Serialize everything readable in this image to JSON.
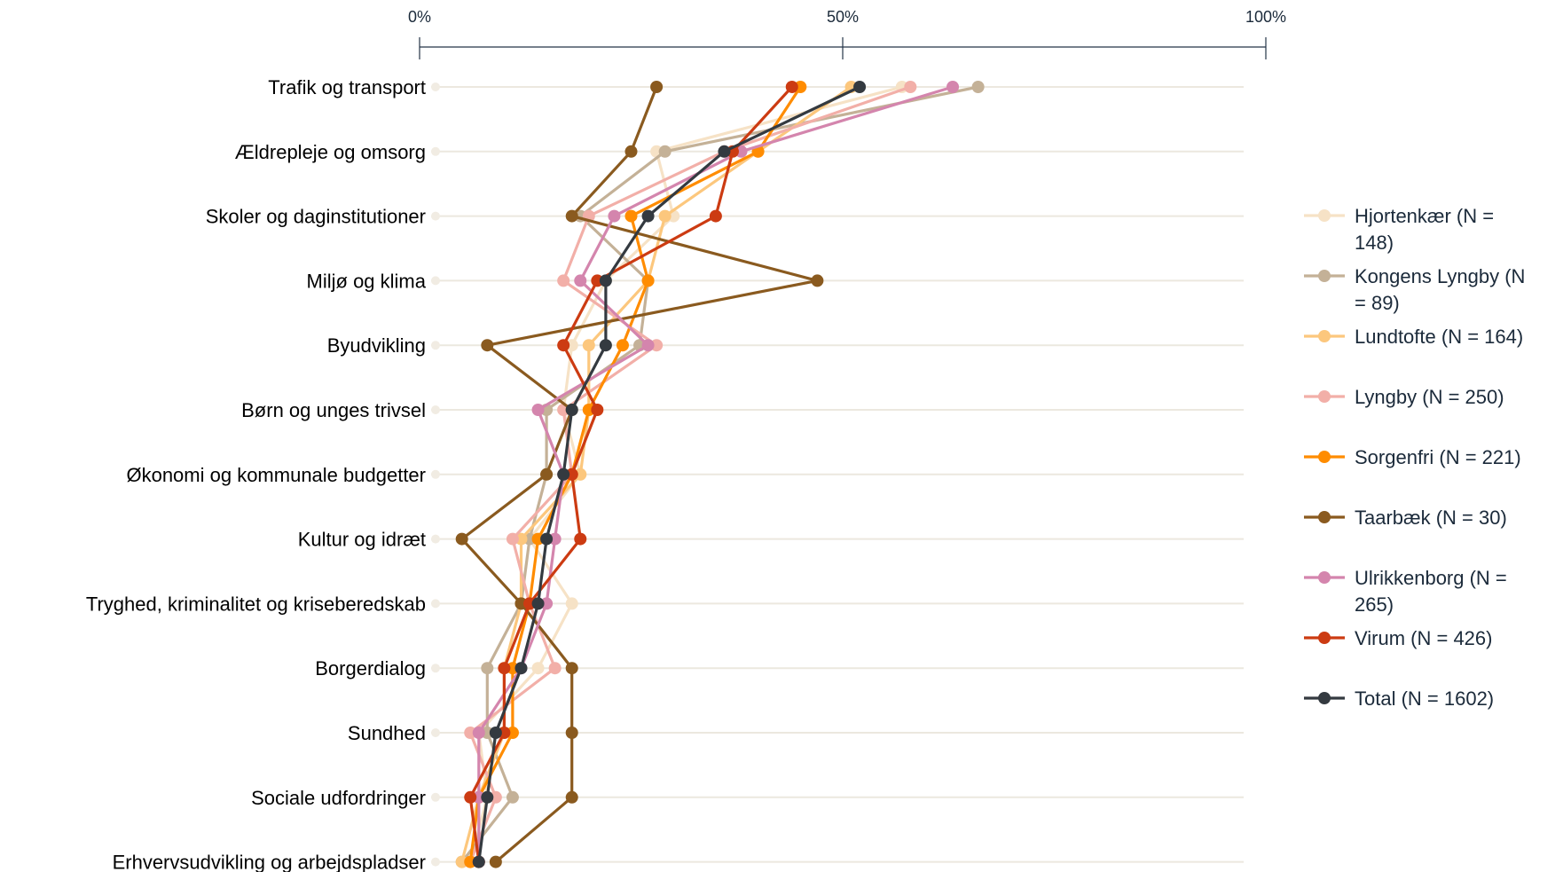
{
  "chart_data": {
    "type": "line",
    "orientation": "horizontal",
    "x_axis": {
      "ticks": [
        0,
        50,
        100
      ],
      "tick_labels": [
        "0%",
        "50%",
        "100%"
      ],
      "position": "top",
      "range": [
        0,
        100
      ]
    },
    "grid": true,
    "legend_position": "right",
    "categories": [
      "Trafik og transport",
      "Ældrepleje og omsorg",
      "Skoler og daginstitutioner",
      "Miljø og klima",
      "Byudvikling",
      "Børn og unges trivsel",
      "Økonomi og kommunale budgetter",
      "Kultur og idræt",
      "Tryghed, kriminalitet og kriseberedskab",
      "Borgerdialog",
      "Sundhed",
      "Sociale udfordringer",
      "Erhvervsudvikling og arbejdspladser"
    ],
    "series": [
      {
        "name": "Hjortenkær (N = 148)",
        "legend_lines": [
          "Hjortenkær (N =",
          "148)"
        ],
        "color": "#f6e2c6",
        "values": [
          57,
          28,
          30,
          22,
          18,
          17,
          19,
          13,
          18,
          14,
          7,
          8,
          6
        ]
      },
      {
        "name": "Kongens Lyngby (N = 89)",
        "legend_lines": [
          "Kongens Lyngby (N",
          "= 89)"
        ],
        "color": "#c4b197",
        "values": [
          66,
          29,
          19,
          27,
          26,
          15,
          15,
          13,
          12,
          8,
          8,
          11,
          5
        ]
      },
      {
        "name": "Lundtofte (N = 164)",
        "legend_lines": [
          "Lundtofte (N = 164)"
        ],
        "color": "#fcc77d",
        "values": [
          51,
          40,
          29,
          27,
          20,
          20,
          19,
          12,
          12,
          10,
          10,
          7,
          5
        ]
      },
      {
        "name": "Lyngby (N = 250)",
        "legend_lines": [
          "Lyngby (N = 250)"
        ],
        "color": "#f2afa8",
        "values": [
          58,
          36,
          20,
          17,
          28,
          17,
          18,
          11,
          13,
          16,
          6,
          9,
          6
        ]
      },
      {
        "name": "Sorgenfri (N = 221)",
        "legend_lines": [
          "Sorgenfri (N = 221)"
        ],
        "color": "#ff8c00",
        "values": [
          45,
          40,
          25,
          27,
          24,
          20,
          18,
          14,
          13,
          11,
          11,
          7,
          6
        ]
      },
      {
        "name": "Taarbæk (N = 30)",
        "legend_lines": [
          "Taarbæk (N = 30)"
        ],
        "color": "#8a5a1f",
        "values": [
          28,
          25,
          18,
          47,
          8,
          18,
          15,
          5,
          12,
          18,
          18,
          18,
          9
        ]
      },
      {
        "name": "Ulrikkenborg (N = 265)",
        "legend_lines": [
          "Ulrikkenborg (N =",
          "265)"
        ],
        "color": "#d485ad",
        "values": [
          63,
          38,
          23,
          19,
          27,
          14,
          17,
          16,
          15,
          12,
          7,
          7,
          7
        ]
      },
      {
        "name": "Virum (N = 426)",
        "legend_lines": [
          "Virum (N = 426)"
        ],
        "color": "#cc3b12",
        "values": [
          44,
          37,
          35,
          21,
          17,
          21,
          18,
          19,
          13,
          10,
          10,
          6,
          7
        ]
      },
      {
        "name": "Total (N = 1602)",
        "legend_lines": [
          "Total (N = 1602)"
        ],
        "color": "#343a40",
        "values": [
          52,
          36,
          27,
          22,
          22,
          18,
          17,
          15,
          14,
          12,
          9,
          8,
          7
        ]
      }
    ]
  }
}
